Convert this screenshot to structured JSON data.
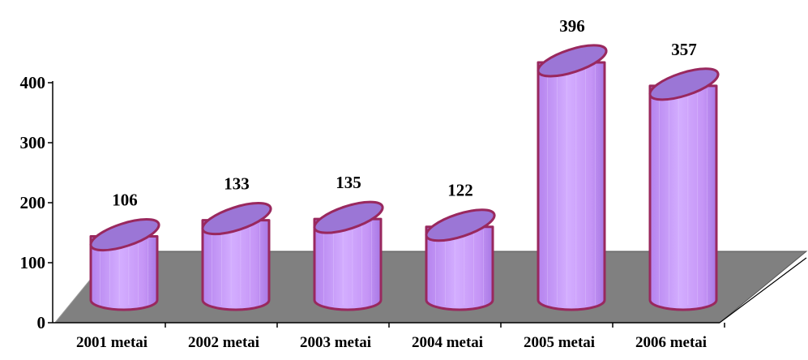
{
  "chart_data": {
    "type": "bar",
    "bar_shape": "cylinder-3d",
    "categories": [
      "2001 metai",
      "2002 metai",
      "2003 metai",
      "2004 metai",
      "2005 metai",
      "2006 metai"
    ],
    "values": [
      106,
      133,
      135,
      122,
      396,
      357
    ],
    "data_labels": [
      "106",
      "133",
      "135",
      "122",
      "396",
      "357"
    ],
    "y_ticks": [
      "0",
      "100",
      "200",
      "300",
      "400"
    ],
    "ylim": [
      0,
      400
    ],
    "grid": false,
    "legend": false,
    "title": "",
    "xlabel": "",
    "ylabel": "",
    "colors": {
      "bar_side": "#c090f4",
      "bar_top": "#9b76d6",
      "bar_outline": "#99285e",
      "floor": "#808080",
      "axis": "#000000"
    }
  }
}
